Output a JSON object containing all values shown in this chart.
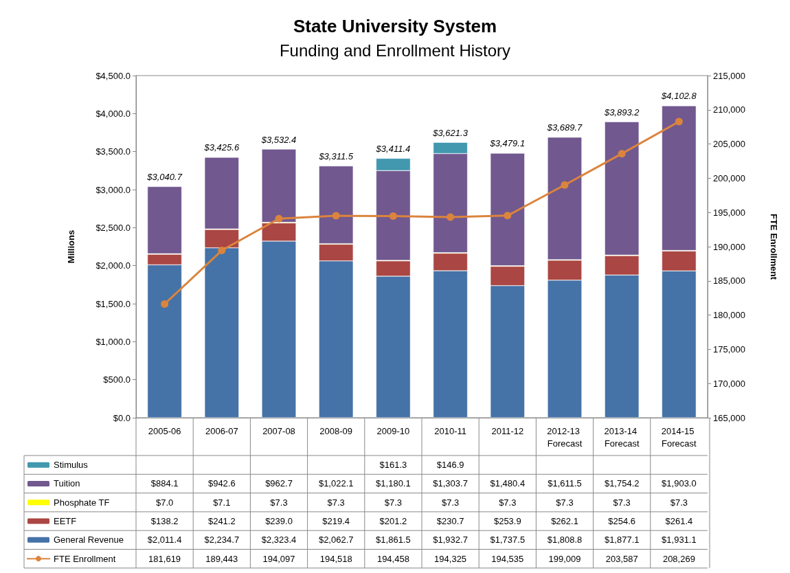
{
  "chart_data": {
    "type": "bar",
    "stacked": true,
    "title": "State University System",
    "subtitle": "Funding and Enrollment History",
    "ylabel": "Millions",
    "y2label": "FTE Enrollment",
    "categories": [
      "2005-06",
      "2006-07",
      "2007-08",
      "2008-09",
      "2009-10",
      "2010-11",
      "2011-12",
      "2012-13 Forecast",
      "2013-14 Forecast",
      "2014-15 Forecast"
    ],
    "series": [
      {
        "name": "General Revenue",
        "color": "#4572a7",
        "values": [
          2011.4,
          2234.7,
          2323.4,
          2062.7,
          1861.5,
          1932.7,
          1737.5,
          1808.8,
          1877.1,
          1931.1
        ],
        "value_labels": [
          "$2,011.4",
          "$2,234.7",
          "$2,323.4",
          "$2,062.7",
          "$1,861.5",
          "$1,932.7",
          "$1,737.5",
          "$1,808.8",
          "$1,877.1",
          "$1,931.1"
        ]
      },
      {
        "name": "EETF",
        "color": "#aa4643",
        "values": [
          138.2,
          241.2,
          239.0,
          219.4,
          201.2,
          230.7,
          253.9,
          262.1,
          254.6,
          261.4
        ],
        "value_labels": [
          "$138.2",
          "$241.2",
          "$239.0",
          "$219.4",
          "$201.2",
          "$230.7",
          "$253.9",
          "$262.1",
          "$254.6",
          "$261.4"
        ]
      },
      {
        "name": "Phosphate TF",
        "color": "#ffff00",
        "values": [
          7.0,
          7.1,
          7.3,
          7.3,
          7.3,
          7.3,
          7.3,
          7.3,
          7.3,
          7.3
        ],
        "value_labels": [
          "$7.0",
          "$7.1",
          "$7.3",
          "$7.3",
          "$7.3",
          "$7.3",
          "$7.3",
          "$7.3",
          "$7.3",
          "$7.3"
        ]
      },
      {
        "name": "Tuition",
        "color": "#71588f",
        "values": [
          884.1,
          942.6,
          962.7,
          1022.1,
          1180.1,
          1303.7,
          1480.4,
          1611.5,
          1754.2,
          1903.0
        ],
        "value_labels": [
          "$884.1",
          "$942.6",
          "$962.7",
          "$1,022.1",
          "$1,180.1",
          "$1,303.7",
          "$1,480.4",
          "$1,611.5",
          "$1,754.2",
          "$1,903.0"
        ]
      },
      {
        "name": "Stimulus",
        "color": "#4198af",
        "values": [
          null,
          null,
          null,
          null,
          161.3,
          146.9,
          null,
          null,
          null,
          null
        ],
        "value_labels": [
          null,
          null,
          null,
          null,
          "$161.3",
          "$146.9",
          null,
          null,
          null,
          null
        ]
      },
      {
        "name": "FTE Enrollment",
        "type": "line",
        "axis": "y2",
        "color": "#db843d",
        "marker": "circle",
        "values": [
          181619,
          189443,
          194097,
          194518,
          194458,
          194325,
          194535,
          199009,
          203587,
          208269
        ],
        "value_labels": [
          "181,619",
          "189,443",
          "194,097",
          "194,518",
          "194,458",
          "194,325",
          "194,535",
          "199,009",
          "203,587",
          "208,269"
        ]
      }
    ],
    "totals": [
      "$3,040.7",
      "$3,425.6",
      "$3,532.4",
      "$3,311.5",
      "$3,411.4",
      "$3,621.3",
      "$3,479.1",
      "$3,689.7",
      "$3,893.2",
      "$4,102.8"
    ],
    "ylim": [
      0,
      4500
    ],
    "yticks": [
      {
        "value": 0,
        "label": "$0.0"
      },
      {
        "value": 500,
        "label": "$500.0"
      },
      {
        "value": 1000,
        "label": "$1,000.0"
      },
      {
        "value": 1500,
        "label": "$1,500.0"
      },
      {
        "value": 2000,
        "label": "$2,000.0"
      },
      {
        "value": 2500,
        "label": "$2,500.0"
      },
      {
        "value": 3000,
        "label": "$3,000.0"
      },
      {
        "value": 3500,
        "label": "$3,500.0"
      },
      {
        "value": 4000,
        "label": "$4,000.0"
      },
      {
        "value": 4500,
        "label": "$4,500.0"
      }
    ],
    "y2lim": [
      165000,
      215000
    ],
    "y2ticks": [
      {
        "value": 165000,
        "label": "165,000"
      },
      {
        "value": 170000,
        "label": "170,000"
      },
      {
        "value": 175000,
        "label": "175,000"
      },
      {
        "value": 180000,
        "label": "180,000"
      },
      {
        "value": 185000,
        "label": "185,000"
      },
      {
        "value": 190000,
        "label": "190,000"
      },
      {
        "value": 195000,
        "label": "195,000"
      },
      {
        "value": 200000,
        "label": "200,000"
      },
      {
        "value": 205000,
        "label": "205,000"
      },
      {
        "value": 210000,
        "label": "210,000"
      },
      {
        "value": 215000,
        "label": "215,000"
      }
    ],
    "grid": false,
    "legend": "bottom left"
  }
}
